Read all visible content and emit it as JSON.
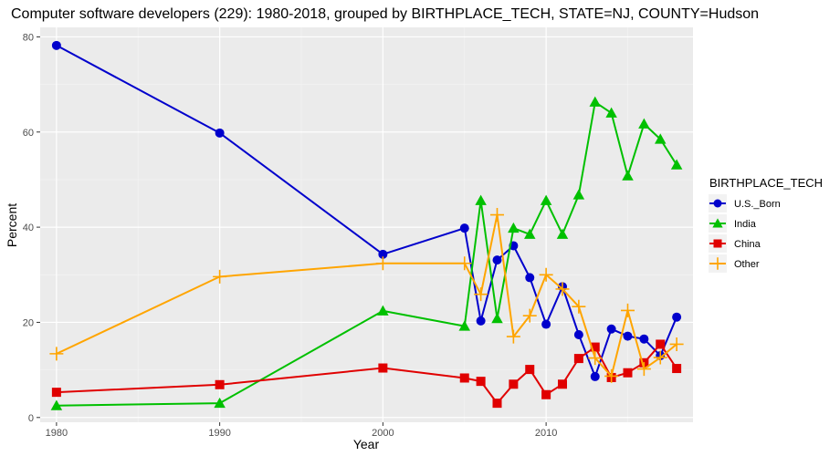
{
  "chart_data": {
    "type": "line",
    "title": "Computer software developers (229): 1980-2018, grouped by BIRTHPLACE_TECH, STATE=NJ, COUNTY=Hudson",
    "xlabel": "Year",
    "ylabel": "Percent",
    "xlim": [
      1979,
      2019
    ],
    "ylim": [
      -1,
      82
    ],
    "x_ticks": [
      1980,
      1990,
      2000,
      2010
    ],
    "y_ticks": [
      0,
      20,
      40,
      60,
      80
    ],
    "grid": true,
    "background": "#ebebeb",
    "legend": {
      "title": "BIRTHPLACE_TECH",
      "position": "right"
    },
    "series": [
      {
        "name": "U.S._Born",
        "color": "#0000cc",
        "marker": "circle",
        "x": [
          1980,
          1990,
          2000,
          2005,
          2006,
          2007,
          2008,
          2009,
          2010,
          2011,
          2012,
          2013,
          2014,
          2015,
          2016,
          2017,
          2018
        ],
        "y": [
          78.2,
          59.8,
          34.3,
          39.8,
          20.3,
          33.1,
          36.1,
          29.4,
          19.6,
          27.5,
          17.4,
          8.6,
          18.6,
          17.1,
          16.5,
          13.0,
          21.1
        ]
      },
      {
        "name": "India",
        "color": "#00c000",
        "marker": "triangle",
        "x": [
          1980,
          1990,
          2000,
          2005,
          2006,
          2007,
          2008,
          2009,
          2010,
          2011,
          2012,
          2013,
          2014,
          2015,
          2016,
          2017,
          2018
        ],
        "y": [
          2.5,
          3.0,
          22.4,
          19.2,
          45.6,
          20.8,
          39.8,
          38.5,
          45.6,
          38.5,
          46.8,
          66.3,
          64.0,
          50.8,
          61.7,
          58.5,
          53.1
        ]
      },
      {
        "name": "China",
        "color": "#e00000",
        "marker": "square",
        "x": [
          1980,
          1990,
          2000,
          2005,
          2006,
          2007,
          2008,
          2009,
          2010,
          2011,
          2012,
          2013,
          2014,
          2015,
          2016,
          2017,
          2018
        ],
        "y": [
          5.3,
          6.9,
          10.4,
          8.3,
          7.6,
          3.0,
          7.0,
          10.1,
          4.8,
          7.0,
          12.4,
          14.8,
          8.4,
          9.4,
          11.5,
          15.4,
          10.3
        ]
      },
      {
        "name": "Other",
        "color": "#ffa500",
        "marker": "plus",
        "x": [
          1980,
          1990,
          2000,
          2005,
          2006,
          2007,
          2008,
          2009,
          2010,
          2011,
          2012,
          2013,
          2014,
          2015,
          2016,
          2017,
          2018
        ],
        "y": [
          13.4,
          29.6,
          32.4,
          32.4,
          25.9,
          42.6,
          17.0,
          21.4,
          30.0,
          27.0,
          23.3,
          12.5,
          8.7,
          22.5,
          10.2,
          12.6,
          15.4
        ]
      }
    ]
  }
}
